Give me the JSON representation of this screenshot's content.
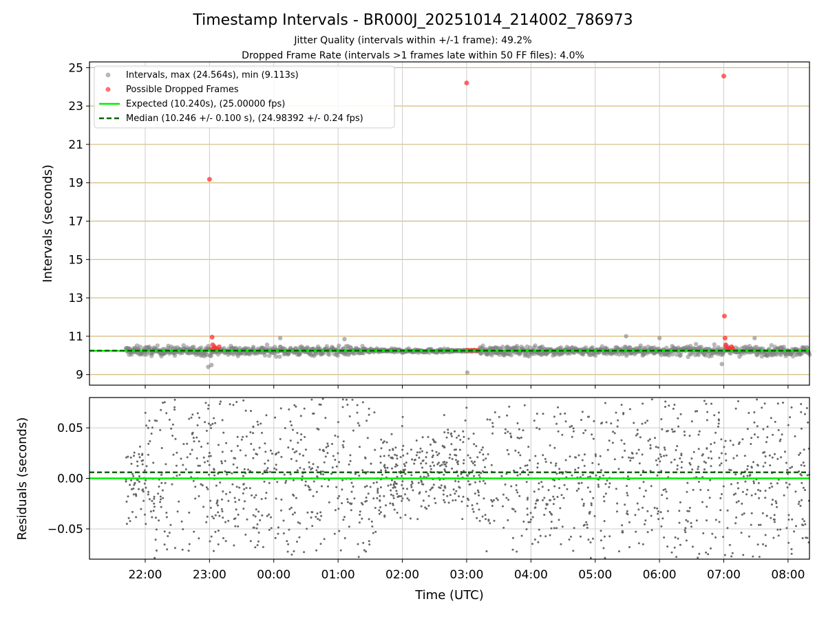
{
  "title": "Timestamp Intervals - BR000J_20251014_214002_786973",
  "subtitle_jitter": "Jitter Quality (intervals within +/-1 frame): 49.2%",
  "subtitle_dropped": "Dropped Frame Rate (intervals >1 frames late within 50 FF files): 4.0%",
  "colors": {
    "intervals": "#808080",
    "dropped": "#ff3333",
    "expected": "#00ee00",
    "median": "#006400",
    "hgrid_top": "#d2b97a",
    "grid": "#cccccc",
    "residuals": "#666666"
  },
  "chart_data": [
    {
      "type": "scatter",
      "panel": "intervals",
      "ylabel": "Intervals (seconds)",
      "xlim_hours": [
        21.133,
        32.333
      ],
      "ylim": [
        8.45,
        25.3
      ],
      "yticks": [
        9,
        11,
        13,
        15,
        17,
        19,
        21,
        23,
        25
      ],
      "ytick_labels": [
        "9",
        "11",
        "13",
        "15",
        "17",
        "19",
        "21",
        "23",
        "25"
      ],
      "legend_position": "upper-left",
      "legend": [
        {
          "label": "Intervals, max (24.564s), min (9.113s)",
          "marker": "dot",
          "color": "#808080"
        },
        {
          "label": "Possible Dropped Frames",
          "marker": "dot",
          "color": "#ff3333"
        },
        {
          "label": "Expected (10.240s), (25.00000 fps)",
          "marker": "line",
          "color": "#00ee00"
        },
        {
          "label": "Median (10.246 +/- 0.100 s), (24.98392 +/- 0.24 fps)",
          "marker": "dash",
          "color": "#006400"
        }
      ],
      "expected_interval": 10.24,
      "median_interval": 10.246,
      "median_std": 0.1,
      "expected_fps": 25.0,
      "median_fps": 24.98392,
      "median_fps_std": 0.24,
      "max_interval": 24.564,
      "min_interval": 9.113,
      "data_start_hours": 21.7,
      "data_end_hours": 32.333,
      "dropped_points": [
        {
          "x": 23.0,
          "y": 19.18
        },
        {
          "x": 23.04,
          "y": 10.95
        },
        {
          "x": 23.05,
          "y": 10.55
        },
        {
          "x": 23.08,
          "y": 10.4
        },
        {
          "x": 23.1,
          "y": 10.35
        },
        {
          "x": 23.12,
          "y": 10.3
        },
        {
          "x": 23.15,
          "y": 10.45
        },
        {
          "x": 23.03,
          "y": 10.3
        },
        {
          "x": 27.0,
          "y": 24.2
        },
        {
          "x": 27.02,
          "y": 10.27
        },
        {
          "x": 27.07,
          "y": 10.27
        },
        {
          "x": 27.12,
          "y": 10.27
        },
        {
          "x": 27.17,
          "y": 10.27
        },
        {
          "x": 31.0,
          "y": 24.56
        },
        {
          "x": 31.01,
          "y": 12.05
        },
        {
          "x": 31.02,
          "y": 10.9
        },
        {
          "x": 31.03,
          "y": 10.55
        },
        {
          "x": 31.05,
          "y": 10.4
        },
        {
          "x": 31.08,
          "y": 10.35
        },
        {
          "x": 31.1,
          "y": 10.3
        },
        {
          "x": 31.12,
          "y": 10.45
        },
        {
          "x": 31.14,
          "y": 10.35
        }
      ],
      "outlier_points": [
        {
          "x": 27.01,
          "y": 9.11
        },
        {
          "x": 22.98,
          "y": 9.4
        },
        {
          "x": 23.03,
          "y": 9.5
        },
        {
          "x": 30.97,
          "y": 9.55
        },
        {
          "x": 24.1,
          "y": 10.9
        },
        {
          "x": 25.1,
          "y": 10.85
        },
        {
          "x": 29.48,
          "y": 11.0
        },
        {
          "x": 30.0,
          "y": 10.9
        },
        {
          "x": 31.48,
          "y": 10.9
        }
      ]
    },
    {
      "type": "scatter",
      "panel": "residuals",
      "ylabel": "Residuals (seconds)",
      "xlabel": "Time (UTC)",
      "xlim_hours": [
        21.133,
        32.333
      ],
      "ylim": [
        -0.08,
        0.08
      ],
      "yticks": [
        -0.05,
        0.0,
        0.05
      ],
      "ytick_labels": [
        "−0.05",
        "0.00",
        "0.05"
      ],
      "expected_residual": 0.0,
      "median_residual": 0.006,
      "xticks_hours": [
        22,
        23,
        24,
        25,
        26,
        27,
        28,
        29,
        30,
        31,
        32
      ],
      "xtick_labels": [
        "22:00",
        "23:00",
        "00:00",
        "01:00",
        "02:00",
        "03:00",
        "04:00",
        "05:00",
        "06:00",
        "07:00",
        "08:00"
      ]
    }
  ]
}
